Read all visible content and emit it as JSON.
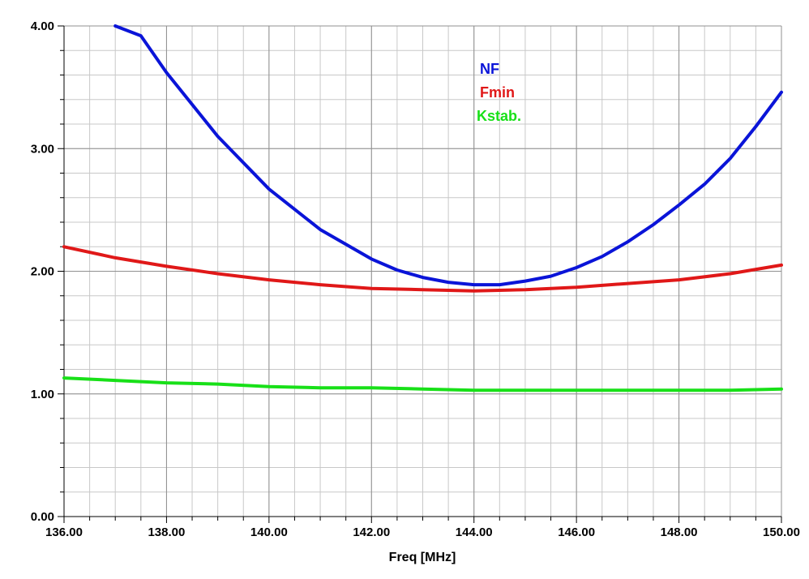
{
  "chart_data": {
    "type": "line",
    "title": "",
    "xlabel": "Freq [MHz]",
    "ylabel": "",
    "xlim": [
      136.0,
      150.0
    ],
    "ylim": [
      0.0,
      4.0
    ],
    "x_ticks": [
      "136.00",
      "138.00",
      "140.00",
      "142.00",
      "144.00",
      "146.00",
      "148.00",
      "150.00"
    ],
    "y_ticks": [
      "0.00",
      "1.00",
      "2.00",
      "3.00",
      "4.00"
    ],
    "grid": true,
    "legend_position": "top-center",
    "series": [
      {
        "name": "NF",
        "color": "#0a14d8",
        "x": [
          137.0,
          137.5,
          138.0,
          139.0,
          140.0,
          141.0,
          142.0,
          142.5,
          143.0,
          143.5,
          144.0,
          144.5,
          145.0,
          145.5,
          146.0,
          146.5,
          147.0,
          147.5,
          148.0,
          148.5,
          149.0,
          149.5,
          150.0
        ],
        "y": [
          4.0,
          3.92,
          3.62,
          3.1,
          2.67,
          2.34,
          2.1,
          2.01,
          1.95,
          1.91,
          1.89,
          1.89,
          1.92,
          1.96,
          2.03,
          2.12,
          2.24,
          2.38,
          2.54,
          2.71,
          2.92,
          3.18,
          3.46
        ]
      },
      {
        "name": "Fmin",
        "color": "#e01818",
        "x": [
          136.0,
          137.0,
          138.0,
          139.0,
          140.0,
          141.0,
          142.0,
          143.0,
          144.0,
          145.0,
          146.0,
          147.0,
          148.0,
          149.0,
          150.0
        ],
        "y": [
          2.2,
          2.11,
          2.04,
          1.98,
          1.93,
          1.89,
          1.86,
          1.85,
          1.84,
          1.85,
          1.87,
          1.9,
          1.93,
          1.98,
          2.05
        ]
      },
      {
        "name": "Kstab.",
        "color": "#18e018",
        "x": [
          136.0,
          137.0,
          138.0,
          139.0,
          140.0,
          141.0,
          142.0,
          143.0,
          144.0,
          145.0,
          146.0,
          147.0,
          148.0,
          149.0,
          150.0
        ],
        "y": [
          1.13,
          1.11,
          1.09,
          1.08,
          1.06,
          1.05,
          1.05,
          1.04,
          1.03,
          1.03,
          1.03,
          1.03,
          1.03,
          1.03,
          1.04
        ]
      }
    ]
  }
}
